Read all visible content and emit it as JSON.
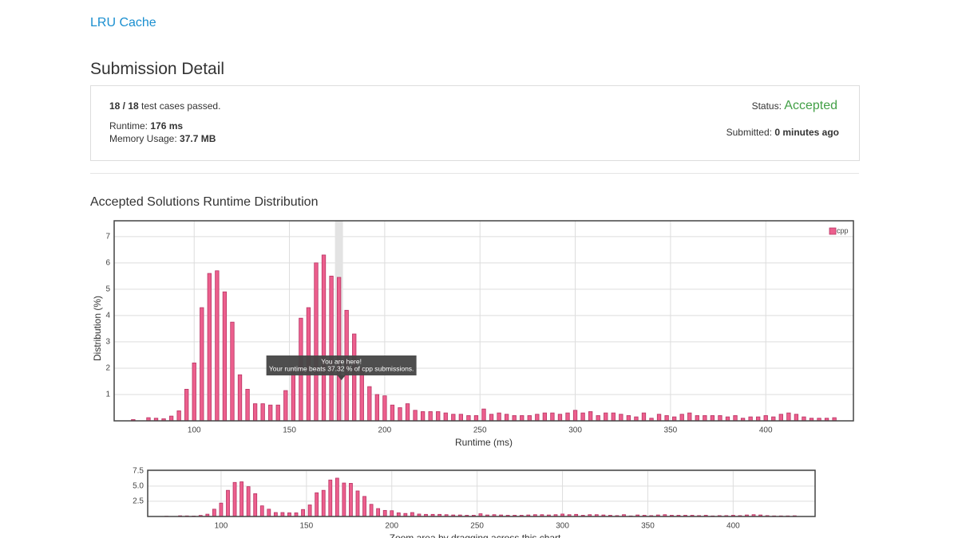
{
  "problem": "LRU Cache",
  "heading": "Submission Detail",
  "summary": {
    "cases": "18 / 18",
    "cases_text": "test cases passed.",
    "runtime_label": "Runtime:",
    "runtime": "176 ms",
    "memory_label": "Memory Usage:",
    "memory": "37.7 MB",
    "status_label": "Status:",
    "status": "Accepted",
    "submitted_label": "Submitted:",
    "submitted": "0 minutes ago"
  },
  "chart_heading": "Accepted Solutions Runtime Distribution",
  "chart_data": [
    {
      "type": "bar",
      "x_label": "Runtime (ms)",
      "y_label": "Distribution (%)",
      "x": [
        68,
        76,
        80,
        84,
        88,
        92,
        96,
        100,
        104,
        108,
        112,
        116,
        120,
        124,
        128,
        132,
        136,
        140,
        144,
        148,
        152,
        156,
        160,
        164,
        168,
        172,
        176,
        180,
        184,
        188,
        192,
        196,
        200,
        204,
        208,
        212,
        216,
        220,
        224,
        228,
        232,
        236,
        240,
        244,
        248,
        252,
        256,
        260,
        264,
        268,
        272,
        276,
        280,
        284,
        288,
        292,
        296,
        300,
        304,
        308,
        312,
        316,
        320,
        324,
        328,
        332,
        336,
        340,
        344,
        348,
        352,
        356,
        360,
        364,
        368,
        372,
        376,
        380,
        384,
        388,
        392,
        396,
        400,
        404,
        408,
        412,
        416,
        420,
        424,
        428,
        432,
        436
      ],
      "series": [
        {
          "name": "cpp",
          "color": "#ec5f8d",
          "values": [
            0.05,
            0.12,
            0.1,
            0.08,
            0.18,
            0.38,
            1.2,
            2.2,
            4.3,
            5.6,
            5.7,
            4.9,
            3.75,
            1.75,
            1.2,
            0.65,
            0.65,
            0.6,
            0.6,
            1.15,
            1.9,
            3.9,
            4.3,
            6.0,
            6.3,
            5.5,
            5.45,
            4.2,
            3.3,
            2.0,
            1.3,
            1.0,
            0.95,
            0.6,
            0.5,
            0.65,
            0.4,
            0.35,
            0.35,
            0.35,
            0.3,
            0.25,
            0.25,
            0.2,
            0.2,
            0.45,
            0.25,
            0.3,
            0.25,
            0.2,
            0.2,
            0.2,
            0.25,
            0.3,
            0.3,
            0.25,
            0.3,
            0.4,
            0.3,
            0.35,
            0.2,
            0.3,
            0.3,
            0.25,
            0.2,
            0.15,
            0.3,
            0.1,
            0.25,
            0.2,
            0.15,
            0.25,
            0.3,
            0.2,
            0.2,
            0.2,
            0.2,
            0.15,
            0.2,
            0.1,
            0.15,
            0.15,
            0.2,
            0.15,
            0.25,
            0.3,
            0.25,
            0.15,
            0.1,
            0.1,
            0.1,
            0.12
          ]
        }
      ],
      "xlim": [
        58,
        446
      ],
      "xticks": [
        100,
        150,
        200,
        250,
        300,
        350,
        400
      ],
      "ylim": [
        0,
        7.6
      ],
      "yticks": [
        1,
        2,
        3,
        4,
        5,
        6,
        7
      ],
      "grid": true,
      "legend": "top-right",
      "highlight": 176,
      "annotations": [
        "You are here!",
        "Your runtime beats 37.32 % of cpp submissions."
      ]
    },
    {
      "type": "bar",
      "xlim": [
        57,
        448
      ],
      "xticks": [
        100,
        150,
        200,
        250,
        300,
        350,
        400
      ],
      "ylim": [
        0,
        7.6
      ],
      "yticks": [
        2.5,
        {
          "value": 5,
          "label": "5.0"
        },
        7.5
      ],
      "grid": true,
      "caption": "Zoom area by dragging across this chart"
    }
  ]
}
